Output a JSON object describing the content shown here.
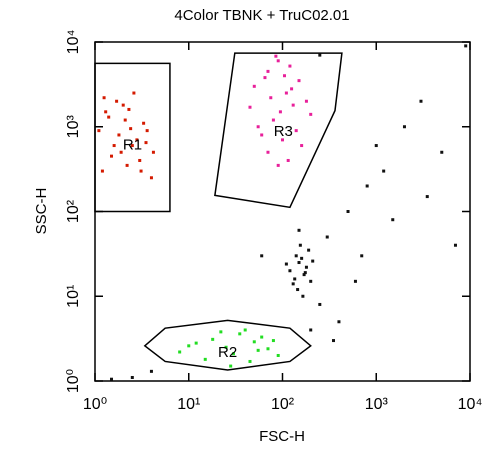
{
  "chart_data": {
    "type": "scatter",
    "title": "4Color TBNK + TruC02.01",
    "x_label": "FSC-H",
    "y_label": "SSC-H",
    "xscale": "log",
    "yscale": "log",
    "xlim": [
      1,
      10000
    ],
    "ylim": [
      1,
      10000
    ],
    "xticks": [
      {
        "value": 1,
        "label": "10⁰"
      },
      {
        "value": 10,
        "label": "10¹"
      },
      {
        "value": 100,
        "label": "10²"
      },
      {
        "value": 1000,
        "label": "10³"
      },
      {
        "value": 10000,
        "label": "10⁴"
      }
    ],
    "yticks": [
      {
        "value": 1,
        "label": "10⁰"
      },
      {
        "value": 10,
        "label": "10¹"
      },
      {
        "value": 100,
        "label": "10²"
      },
      {
        "value": 1000,
        "label": "10³"
      },
      {
        "value": 10000,
        "label": "10⁴"
      }
    ],
    "series": [
      {
        "name": null,
        "color": "#d41a00",
        "x": [
          1.2,
          1.5,
          1.8,
          2.1,
          2.5,
          3.0,
          3.6,
          4.2,
          1.3,
          1.7,
          2.2,
          2.8,
          3.3,
          4.0,
          1.1,
          1.6,
          2.0,
          2.6,
          3.1,
          1.4,
          1.9,
          2.4,
          3.5,
          1.25,
          2.3
        ],
        "values": [
          300,
          450,
          800,
          1200,
          600,
          400,
          900,
          500,
          1500,
          2000,
          350,
          700,
          1100,
          250,
          900,
          600,
          1800,
          2500,
          300,
          1300,
          500,
          950,
          650,
          2200,
          1600
        ]
      },
      {
        "name": null,
        "color": "#e8209a",
        "x": [
          50,
          70,
          90,
          110,
          130,
          80,
          60,
          100,
          150,
          120,
          75,
          95,
          140,
          65,
          85,
          105,
          125,
          55,
          180,
          160,
          115,
          90,
          70,
          200,
          45
        ],
        "values": [
          3000,
          4500,
          6000,
          2500,
          1800,
          1200,
          800,
          700,
          3500,
          5200,
          2200,
          1500,
          900,
          3800,
          6800,
          4000,
          2800,
          1000,
          2000,
          600,
          400,
          350,
          500,
          1400,
          1700
        ]
      },
      {
        "name": null,
        "color": "#111111",
        "x": [
          120,
          150,
          170,
          140,
          180,
          200,
          130,
          160,
          110,
          190,
          145,
          175,
          155,
          135,
          210,
          165
        ],
        "values": [
          20,
          25,
          18,
          30,
          22,
          15,
          14,
          28,
          24,
          35,
          12,
          19,
          40,
          16,
          26,
          10
        ]
      },
      {
        "name": null,
        "color": "#22dd22",
        "x": [
          8,
          12,
          18,
          25,
          35,
          50,
          70,
          90,
          15,
          22,
          30,
          45,
          60,
          10,
          40,
          80,
          28,
          55
        ],
        "values": [
          2.2,
          2.8,
          3.1,
          2.5,
          3.6,
          2.9,
          2.4,
          2.0,
          1.8,
          3.8,
          2.1,
          1.7,
          3.3,
          2.6,
          4.0,
          3.0,
          1.5,
          2.3
        ]
      },
      {
        "name": null,
        "color": "#111111",
        "x": [
          300,
          500,
          800,
          1200,
          2000,
          3000,
          250,
          400,
          600,
          1500,
          5000,
          7000,
          2.5,
          4,
          1.5,
          200,
          350,
          150,
          700,
          1000,
          3500,
          60,
          250,
          9000
        ],
        "values": [
          50,
          100,
          200,
          300,
          1000,
          2000,
          8,
          5,
          15,
          80,
          500,
          40,
          1.1,
          1.3,
          1.05,
          4,
          3,
          60,
          30,
          600,
          150,
          30,
          7000,
          9000
        ]
      }
    ],
    "gates": [
      {
        "name": "R1",
        "x": [
          1,
          6.3,
          6.3,
          1
        ],
        "y": [
          5600,
          5600,
          100,
          100
        ]
      },
      {
        "name": "R2",
        "x": [
          3.4,
          5.6,
          26,
          120,
          200,
          120,
          26,
          5.6
        ],
        "y": [
          2.6,
          4.2,
          5.2,
          4.2,
          2.6,
          1.7,
          1.35,
          1.7
        ]
      },
      {
        "name": "R3",
        "x": [
          31,
          430,
          363,
          120,
          19
        ],
        "y": [
          7400,
          7400,
          1550,
          112,
          155
        ]
      }
    ]
  }
}
